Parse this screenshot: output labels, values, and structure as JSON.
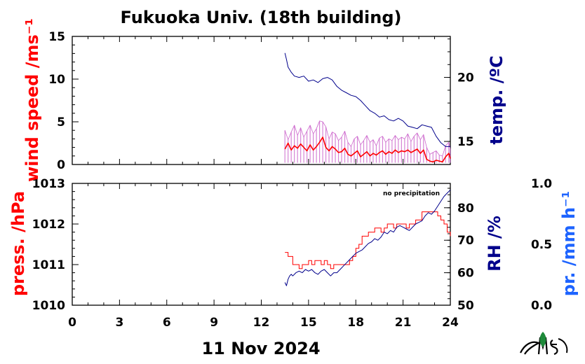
{
  "title": "Fukuoka Univ. (18th building)",
  "date_label": "11 Nov 2024",
  "precip_note": "no precipitation",
  "colors": {
    "wind_speed": "#ff0000",
    "wind_gust": "#cc66cc",
    "temperature": "#00008b",
    "pressure": "#ff0000",
    "humidity": "#00008b",
    "precipitation": "#1e64ff",
    "frame": "#000000"
  },
  "icons": [
    "mes-logo-icon"
  ],
  "chart_data": [
    {
      "type": "line",
      "panel": "top",
      "x_ticks": [
        "0",
        "3",
        "6",
        "9",
        "12",
        "15",
        "18",
        "21",
        "24"
      ],
      "xlim": [
        0,
        24
      ],
      "y_left": {
        "label": "wind speed /ms⁻¹",
        "ticks": [
          "0",
          "5",
          "10",
          "15"
        ],
        "lim": [
          0,
          15
        ]
      },
      "y_right": {
        "label": "temp. /ºC",
        "ticks": [
          "15",
          "20"
        ],
        "lim": [
          13.2,
          23.2
        ]
      },
      "series": [
        {
          "axis": "right",
          "kind": "temperature",
          "x": [
            13.5,
            13.6,
            13.7,
            13.9,
            14.1,
            14.4,
            14.7,
            15.0,
            15.3,
            15.6,
            15.9,
            16.2,
            16.5,
            16.8,
            17.1,
            17.4,
            17.7,
            18.0,
            18.3,
            18.6,
            18.9,
            19.2,
            19.5,
            19.8,
            20.1,
            20.4,
            20.7,
            21.0,
            21.3,
            21.6,
            21.9,
            22.2,
            22.5,
            22.8,
            23.1,
            23.4,
            23.7,
            24.0
          ],
          "y": [
            21.9,
            21.4,
            20.8,
            20.4,
            20.1,
            20.0,
            20.1,
            19.7,
            19.8,
            19.6,
            19.9,
            20.0,
            19.8,
            19.3,
            19.0,
            18.8,
            18.6,
            18.5,
            18.2,
            17.8,
            17.4,
            17.2,
            16.9,
            17.0,
            16.7,
            16.6,
            16.8,
            16.6,
            16.2,
            16.1,
            16.0,
            16.3,
            16.2,
            16.1,
            15.4,
            14.9,
            14.6,
            14.6
          ]
        },
        {
          "axis": "left",
          "kind": "wind_speed",
          "x": [
            13.5,
            13.7,
            13.9,
            14.1,
            14.3,
            14.5,
            14.7,
            14.9,
            15.1,
            15.3,
            15.5,
            15.7,
            15.9,
            16.1,
            16.3,
            16.5,
            16.7,
            16.9,
            17.1,
            17.3,
            17.5,
            17.7,
            17.9,
            18.1,
            18.3,
            18.5,
            18.7,
            18.9,
            19.1,
            19.3,
            19.5,
            19.7,
            19.9,
            20.1,
            20.3,
            20.5,
            20.7,
            20.9,
            21.1,
            21.3,
            21.5,
            21.7,
            21.9,
            22.1,
            22.3,
            22.5,
            22.7,
            22.9,
            23.1,
            23.3,
            23.5,
            23.7,
            23.9,
            24.0
          ],
          "y": [
            1.8,
            2.5,
            1.7,
            2.2,
            1.9,
            2.4,
            2.0,
            1.6,
            2.3,
            1.7,
            2.1,
            2.6,
            3.2,
            2.0,
            1.6,
            2.1,
            1.8,
            1.4,
            1.5,
            1.9,
            1.2,
            1.0,
            1.3,
            1.6,
            0.9,
            1.2,
            1.5,
            1.0,
            1.3,
            1.1,
            1.4,
            1.6,
            1.2,
            1.5,
            1.3,
            1.7,
            1.4,
            1.6,
            1.5,
            1.7,
            1.4,
            1.6,
            1.8,
            1.3,
            1.7,
            0.6,
            0.4,
            0.3,
            0.5,
            0.4,
            0.3,
            0.9,
            1.3,
            0.7
          ]
        },
        {
          "axis": "left",
          "kind": "wind_gust",
          "x": [
            13.5,
            13.7,
            13.9,
            14.1,
            14.3,
            14.5,
            14.7,
            14.9,
            15.1,
            15.3,
            15.5,
            15.7,
            15.9,
            16.1,
            16.3,
            16.5,
            16.7,
            16.9,
            17.1,
            17.3,
            17.5,
            17.7,
            17.9,
            18.1,
            18.3,
            18.5,
            18.7,
            18.9,
            19.1,
            19.3,
            19.5,
            19.7,
            19.9,
            20.1,
            20.3,
            20.5,
            20.7,
            20.9,
            21.1,
            21.3,
            21.5,
            21.7,
            21.9,
            22.1,
            22.3,
            22.5,
            22.7,
            22.9,
            23.1,
            23.3,
            23.5,
            23.7,
            23.9,
            24.0
          ],
          "y": [
            4.0,
            2.9,
            3.8,
            4.6,
            3.4,
            4.3,
            3.2,
            3.9,
            4.6,
            3.6,
            4.2,
            5.1,
            5.0,
            4.4,
            3.0,
            3.8,
            3.6,
            2.8,
            3.2,
            3.9,
            2.6,
            2.1,
            3.0,
            3.3,
            2.3,
            2.8,
            3.4,
            2.6,
            2.9,
            2.2,
            3.1,
            3.3,
            2.6,
            3.0,
            2.8,
            3.4,
            2.9,
            3.2,
            3.0,
            3.6,
            2.7,
            3.3,
            3.7,
            2.9,
            3.5,
            2.0,
            1.2,
            1.4,
            1.6,
            1.1,
            1.0,
            2.2,
            2.6,
            1.8
          ]
        }
      ]
    },
    {
      "type": "line",
      "panel": "bottom",
      "x_ticks": [
        "0",
        "3",
        "6",
        "9",
        "12",
        "15",
        "18",
        "21",
        "24"
      ],
      "xlim": [
        0,
        24
      ],
      "y_left": {
        "label": "press. /hPa",
        "ticks": [
          "1010",
          "1011",
          "1012",
          "1013"
        ],
        "lim": [
          1010,
          1013
        ]
      },
      "y_right": {
        "label": "RH /%",
        "ticks": [
          "50",
          "60",
          "70",
          "80"
        ],
        "lim": [
          50,
          87.5
        ]
      },
      "y_far_right": {
        "label": "pr. /mm h⁻¹",
        "ticks": [
          "0.0",
          "0.5",
          "1.0"
        ],
        "lim": [
          0,
          1
        ]
      },
      "series": [
        {
          "axis": "left",
          "kind": "pressure",
          "x": [
            13.5,
            13.7,
            13.9,
            14.0,
            14.2,
            14.4,
            14.6,
            14.8,
            15.0,
            15.2,
            15.4,
            15.6,
            15.8,
            16.0,
            16.2,
            16.4,
            16.6,
            16.8,
            17.0,
            17.2,
            17.4,
            17.6,
            17.8,
            18.0,
            18.2,
            18.4,
            18.6,
            18.8,
            19.0,
            19.2,
            19.4,
            19.6,
            19.8,
            20.0,
            20.2,
            20.4,
            20.6,
            20.8,
            21.0,
            21.2,
            21.4,
            21.6,
            21.8,
            22.0,
            22.2,
            22.4,
            22.6,
            22.8,
            23.0,
            23.2,
            23.4,
            23.6,
            23.8,
            24.0
          ],
          "y": [
            1011.3,
            1011.2,
            1011.2,
            1011.0,
            1011.0,
            1010.9,
            1011.0,
            1011.0,
            1011.1,
            1011.0,
            1011.1,
            1011.1,
            1011.0,
            1011.1,
            1011.0,
            1010.9,
            1011.0,
            1011.0,
            1011.0,
            1011.0,
            1011.0,
            1011.1,
            1011.2,
            1011.4,
            1011.5,
            1011.7,
            1011.7,
            1011.8,
            1011.8,
            1011.9,
            1011.9,
            1011.8,
            1011.9,
            1012.0,
            1012.0,
            1011.9,
            1012.0,
            1012.0,
            1012.0,
            1011.9,
            1012.0,
            1012.0,
            1012.1,
            1012.1,
            1012.3,
            1012.3,
            1012.3,
            1012.3,
            1012.3,
            1012.2,
            1012.1,
            1012.0,
            1011.8,
            1011.7
          ]
        },
        {
          "axis": "right",
          "kind": "humidity",
          "x": [
            13.5,
            13.6,
            13.7,
            13.8,
            13.9,
            14.0,
            14.2,
            14.4,
            14.6,
            14.8,
            15.0,
            15.2,
            15.4,
            15.6,
            15.8,
            16.0,
            16.2,
            16.4,
            16.6,
            16.8,
            17.0,
            17.2,
            17.4,
            17.6,
            17.8,
            18.0,
            18.2,
            18.4,
            18.6,
            18.8,
            19.0,
            19.2,
            19.4,
            19.6,
            19.8,
            20.0,
            20.2,
            20.4,
            20.6,
            20.8,
            21.0,
            21.2,
            21.4,
            21.6,
            21.8,
            22.0,
            22.2,
            22.4,
            22.6,
            22.8,
            23.0,
            23.2,
            23.4,
            23.6,
            23.8,
            24.0
          ],
          "y": [
            57.0,
            56.0,
            58.0,
            59.0,
            59.5,
            59.0,
            60.0,
            60.5,
            60.0,
            61.0,
            60.5,
            61.0,
            60.0,
            59.5,
            60.5,
            61.0,
            60.0,
            59.0,
            60.0,
            60.0,
            61.0,
            62.0,
            63.0,
            64.0,
            65.0,
            66.0,
            66.5,
            67.0,
            68.0,
            69.0,
            69.5,
            70.5,
            70.0,
            71.0,
            72.5,
            72.0,
            73.0,
            72.5,
            74.0,
            74.5,
            74.0,
            73.5,
            73.0,
            74.0,
            75.0,
            75.5,
            76.0,
            77.5,
            78.5,
            78.0,
            79.0,
            80.5,
            82.0,
            83.5,
            84.5,
            85.5
          ]
        },
        {
          "axis": "far_right",
          "kind": "precipitation",
          "x": [],
          "y": []
        }
      ]
    }
  ]
}
